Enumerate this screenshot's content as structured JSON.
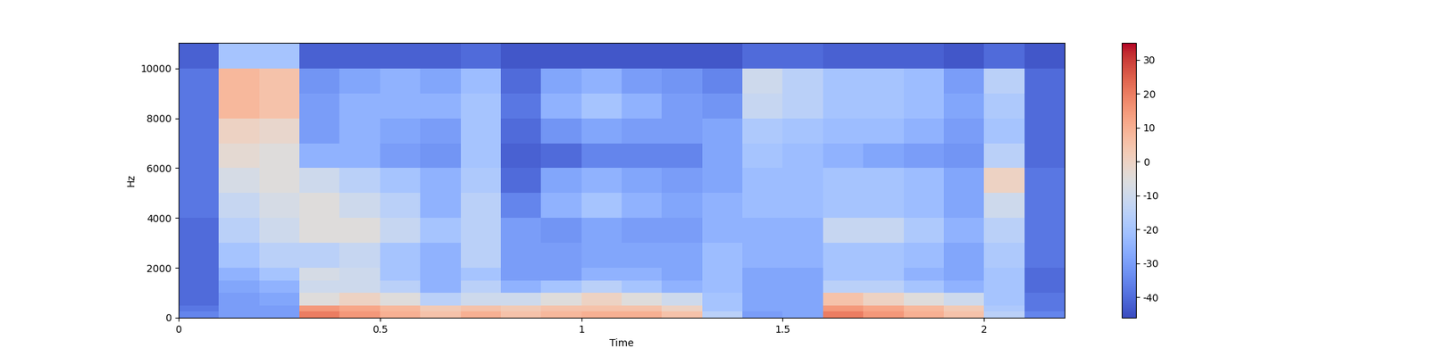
{
  "chart_data": {
    "type": "heatmap",
    "xlabel": "Time",
    "ylabel": "Hz",
    "color": "coolwarm",
    "x_edges": [
      0,
      0.1,
      0.2,
      0.3,
      0.4,
      0.5,
      0.6,
      0.7,
      0.8,
      0.9,
      1.0,
      1.1,
      1.2,
      1.3,
      1.4,
      1.5,
      1.6,
      1.7,
      1.8,
      1.9,
      2.0,
      2.1,
      2.2
    ],
    "y_edges": [
      0,
      250,
      500,
      1000,
      1500,
      2000,
      3000,
      4000,
      5000,
      6000,
      7000,
      8000,
      9000,
      10000,
      11025
    ],
    "cells_by_time": [
      [
        -35,
        -38,
        -40,
        -40,
        -40,
        -40,
        -40,
        -38,
        -38,
        -38,
        -38,
        -38,
        -38,
        -42
      ],
      [
        -30,
        -30,
        -30,
        -28,
        -25,
        -20,
        -15,
        -12,
        -8,
        -3,
        0,
        8,
        8,
        -20
      ],
      [
        -30,
        -30,
        -28,
        -25,
        -20,
        -15,
        -10,
        -8,
        -5,
        -5,
        -2,
        5,
        5,
        -20
      ],
      [
        20,
        15,
        -5,
        -10,
        -8,
        -15,
        -5,
        -5,
        -10,
        -25,
        -30,
        -30,
        -32,
        -42
      ],
      [
        15,
        12,
        0,
        -10,
        -10,
        -12,
        -5,
        -10,
        -15,
        -25,
        -25,
        -25,
        -28,
        -42
      ],
      [
        10,
        8,
        -5,
        -15,
        -20,
        -20,
        -12,
        -15,
        -20,
        -30,
        -28,
        -25,
        -25,
        -42
      ],
      [
        5,
        3,
        -15,
        -25,
        -25,
        -25,
        -20,
        -25,
        -25,
        -32,
        -30,
        -25,
        -28,
        -42
      ],
      [
        10,
        5,
        -10,
        -15,
        -20,
        -15,
        -15,
        -15,
        -18,
        -20,
        -20,
        -20,
        -22,
        -40
      ],
      [
        5,
        3,
        -10,
        -25,
        -30,
        -30,
        -30,
        -35,
        -40,
        -42,
        -40,
        -38,
        -40,
        -44
      ],
      [
        8,
        5,
        -5,
        -20,
        -30,
        -30,
        -32,
        -25,
        -28,
        -40,
        -32,
        -25,
        -28,
        -44
      ],
      [
        10,
        5,
        0,
        -15,
        -25,
        -28,
        -28,
        -20,
        -25,
        -35,
        -28,
        -20,
        -25,
        -44
      ],
      [
        10,
        5,
        -5,
        -20,
        -25,
        -28,
        -30,
        -25,
        -28,
        -35,
        -30,
        -25,
        -30,
        -44
      ],
      [
        5,
        0,
        -10,
        -25,
        -28,
        -28,
        -30,
        -28,
        -30,
        -35,
        -30,
        -30,
        -32,
        -44
      ],
      [
        -15,
        -20,
        -20,
        -22,
        -22,
        -22,
        -25,
        -25,
        -28,
        -28,
        -28,
        -32,
        -35,
        -44
      ],
      [
        -30,
        -28,
        -28,
        -28,
        -28,
        -25,
        -25,
        -22,
        -22,
        -20,
        -18,
        -12,
        -10,
        -40
      ],
      [
        -28,
        -28,
        -28,
        -28,
        -28,
        -25,
        -25,
        -22,
        -22,
        -22,
        -20,
        -15,
        -15,
        -40
      ],
      [
        20,
        15,
        5,
        -15,
        -20,
        -20,
        -12,
        -20,
        -20,
        -25,
        -22,
        -20,
        -20,
        -42
      ],
      [
        15,
        12,
        0,
        -15,
        -20,
        -20,
        -12,
        -20,
        -20,
        -28,
        -22,
        -20,
        -20,
        -42
      ],
      [
        10,
        8,
        -5,
        -20,
        -25,
        -22,
        -18,
        -22,
        -22,
        -30,
        -25,
        -22,
        -22,
        -42
      ],
      [
        5,
        3,
        -10,
        -25,
        -28,
        -28,
        -25,
        -28,
        -28,
        -32,
        -30,
        -28,
        -30,
        -44
      ],
      [
        -15,
        -18,
        -20,
        -20,
        -20,
        -18,
        -15,
        -10,
        0,
        -15,
        -20,
        -18,
        -15,
        -40
      ],
      [
        -35,
        -38,
        -38,
        -40,
        -40,
        -38,
        -38,
        -38,
        -38,
        -40,
        -40,
        -40,
        -40,
        -44
      ]
    ],
    "xlim": [
      0,
      2.2
    ],
    "ylim": [
      0,
      11025
    ],
    "xticks": [
      0,
      0.5,
      1,
      1.5,
      2
    ],
    "yticks": [
      0,
      2000,
      4000,
      6000,
      8000,
      10000
    ],
    "colorbar": {
      "range": [
        -46,
        35
      ],
      "ticks": [
        -40,
        -30,
        -20,
        -10,
        0,
        10,
        20,
        30
      ]
    }
  }
}
